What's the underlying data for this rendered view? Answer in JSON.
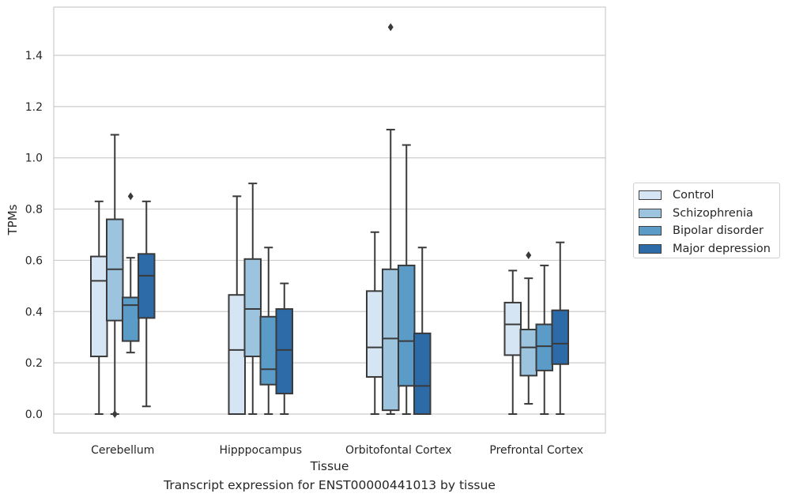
{
  "chart_data": {
    "type": "box",
    "title": "",
    "caption": "Transcript expression for ENST00000441013 by tissue",
    "xlabel": "Tissue",
    "ylabel": "TPMs",
    "ylim": [
      -0.07,
      1.59
    ],
    "yticks": [
      0.0,
      0.2,
      0.4,
      0.6,
      0.8,
      1.0,
      1.2,
      1.4
    ],
    "ytick_labels": [
      "0.0",
      "0.2",
      "0.4",
      "0.6",
      "0.8",
      "1.0",
      "1.2",
      "1.4"
    ],
    "grid": true,
    "legend_position": "right-center",
    "categories": [
      "Cerebellum",
      "Hipppocampus",
      "Orbitofontal Cortex",
      "Prefrontal Cortex"
    ],
    "series": [
      {
        "name": "Control",
        "color": "#d6e5f3",
        "boxes": [
          {
            "whisker_low": 0.0,
            "q1": 0.225,
            "median": 0.52,
            "q3": 0.615,
            "whisker_high": 0.83,
            "outliers": []
          },
          {
            "whisker_low": 0.0,
            "q1": 0.0,
            "median": 0.25,
            "q3": 0.465,
            "whisker_high": 0.85,
            "outliers": []
          },
          {
            "whisker_low": 0.0,
            "q1": 0.145,
            "median": 0.26,
            "q3": 0.48,
            "whisker_high": 0.71,
            "outliers": []
          },
          {
            "whisker_low": 0.0,
            "q1": 0.23,
            "median": 0.35,
            "q3": 0.435,
            "whisker_high": 0.56,
            "outliers": []
          }
        ]
      },
      {
        "name": "Schizophrenia",
        "color": "#9dc4de",
        "boxes": [
          {
            "whisker_low": 0.0,
            "q1": 0.365,
            "median": 0.565,
            "q3": 0.76,
            "whisker_high": 1.09,
            "outliers": [
              0.0
            ]
          },
          {
            "whisker_low": 0.0,
            "q1": 0.225,
            "median": 0.41,
            "q3": 0.605,
            "whisker_high": 0.9,
            "outliers": []
          },
          {
            "whisker_low": 0.0,
            "q1": 0.015,
            "median": 0.295,
            "q3": 0.565,
            "whisker_high": 1.11,
            "outliers": [
              1.51
            ]
          },
          {
            "whisker_low": 0.04,
            "q1": 0.15,
            "median": 0.26,
            "q3": 0.33,
            "whisker_high": 0.53,
            "outliers": [
              0.62
            ]
          }
        ]
      },
      {
        "name": "Bipolar disorder",
        "color": "#5a9bc8",
        "boxes": [
          {
            "whisker_low": 0.24,
            "q1": 0.285,
            "median": 0.425,
            "q3": 0.455,
            "whisker_high": 0.61,
            "outliers": [
              0.85
            ]
          },
          {
            "whisker_low": 0.0,
            "q1": 0.115,
            "median": 0.175,
            "q3": 0.38,
            "whisker_high": 0.65,
            "outliers": []
          },
          {
            "whisker_low": 0.0,
            "q1": 0.11,
            "median": 0.285,
            "q3": 0.58,
            "whisker_high": 1.05,
            "outliers": []
          },
          {
            "whisker_low": 0.0,
            "q1": 0.17,
            "median": 0.265,
            "q3": 0.35,
            "whisker_high": 0.58,
            "outliers": []
          }
        ]
      },
      {
        "name": "Major depression",
        "color": "#2c6ba8",
        "boxes": [
          {
            "whisker_low": 0.03,
            "q1": 0.375,
            "median": 0.54,
            "q3": 0.625,
            "whisker_high": 0.83,
            "outliers": []
          },
          {
            "whisker_low": 0.0,
            "q1": 0.08,
            "median": 0.25,
            "q3": 0.41,
            "whisker_high": 0.51,
            "outliers": []
          },
          {
            "whisker_low": 0.0,
            "q1": 0.0,
            "median": 0.11,
            "q3": 0.315,
            "whisker_high": 0.65,
            "outliers": []
          },
          {
            "whisker_low": 0.0,
            "q1": 0.195,
            "median": 0.275,
            "q3": 0.405,
            "whisker_high": 0.67,
            "outliers": []
          }
        ]
      }
    ]
  }
}
